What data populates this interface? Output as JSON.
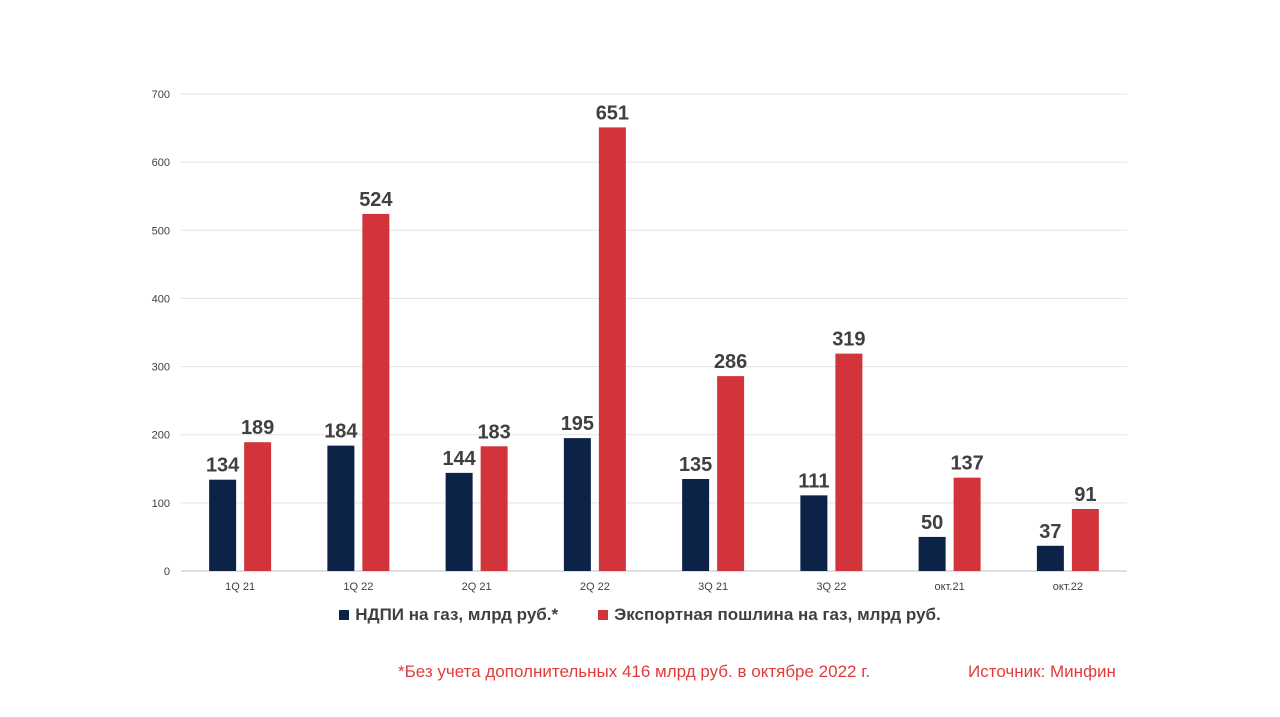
{
  "chart_data": {
    "type": "bar",
    "categories": [
      "1Q 21",
      "1Q 22",
      "2Q 21",
      "2Q 22",
      "3Q 21",
      "3Q 22",
      "окт.21",
      "окт.22"
    ],
    "series": [
      {
        "name": "НДПИ на газ, млрд руб.*",
        "color": "#0d2247",
        "values": [
          134,
          184,
          144,
          195,
          135,
          111,
          50,
          37
        ]
      },
      {
        "name": "Экспортная пошлина на газ, млрд руб.",
        "color": "#d1343b",
        "values": [
          189,
          524,
          183,
          651,
          286,
          319,
          137,
          91
        ]
      }
    ],
    "yticks": [
      0,
      100,
      200,
      300,
      400,
      500,
      600,
      700
    ],
    "ylim": [
      0,
      700
    ],
    "grid": true,
    "legend_position": "bottom",
    "title": "",
    "xlabel": "",
    "ylabel": ""
  },
  "footnote": "*Без учета дополнительных 416 млрд руб. в октябре 2022 г.",
  "source": "Источник: Минфин"
}
